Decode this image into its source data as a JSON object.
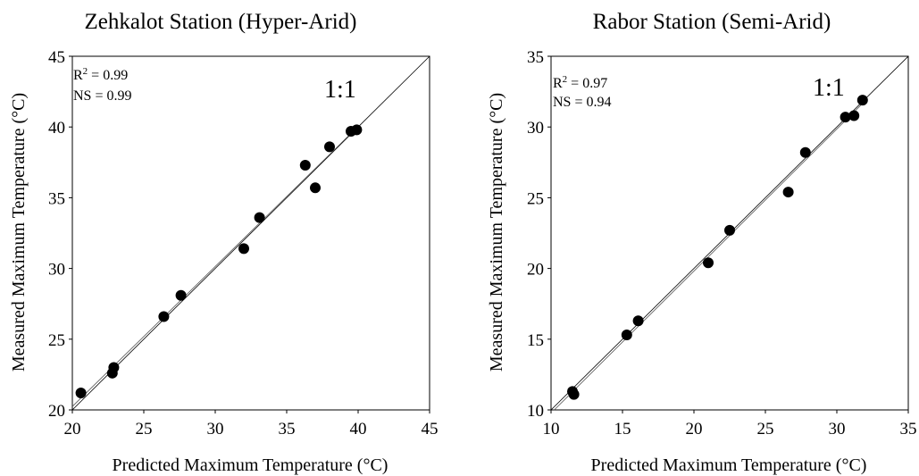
{
  "chart_data": [
    {
      "type": "scatter",
      "title": "Zehkalot Station (Hyper-Arid)",
      "xlabel": "Predicted Maximum Temperature (°C)",
      "ylabel": "Measured Maximum Temperature (°C)",
      "xlim": [
        20,
        45
      ],
      "ylim": [
        20,
        45
      ],
      "xticks": [
        "20",
        "25",
        "30",
        "35",
        "40",
        "45"
      ],
      "yticks": [
        "20",
        "25",
        "30",
        "35",
        "40",
        "45"
      ],
      "grid": false,
      "r2_label": "R",
      "r2_sup": "2",
      "r2_value": " = 0.99",
      "ns_text": "NS = 0.99",
      "one_to_one_label": "1:1",
      "x": [
        20.6,
        22.8,
        22.9,
        26.4,
        27.6,
        32.0,
        33.1,
        36.3,
        37.0,
        38.0,
        39.5,
        39.9
      ],
      "y": [
        21.2,
        22.6,
        23.0,
        26.6,
        28.1,
        31.4,
        33.6,
        37.3,
        35.7,
        38.6,
        39.7,
        39.8
      ]
    },
    {
      "type": "scatter",
      "title": "Rabor Station (Semi-Arid)",
      "xlabel": "Predicted Maximum Temperature (°C)",
      "ylabel": "Measured Maximum Temperature (°C)",
      "xlim": [
        10,
        35
      ],
      "ylim": [
        10,
        35
      ],
      "xticks": [
        "10",
        "15",
        "20",
        "25",
        "30",
        "35"
      ],
      "yticks": [
        "10",
        "15",
        "20",
        "25",
        "30",
        "35"
      ],
      "grid": false,
      "r2_label": "R",
      "r2_sup": "2",
      "r2_value": " = 0.97",
      "ns_text": "NS = 0.94",
      "one_to_one_label": "1:1",
      "x": [
        11.5,
        11.6,
        15.3,
        16.1,
        21.0,
        22.5,
        26.6,
        27.8,
        30.6,
        31.2,
        31.8
      ],
      "y": [
        11.3,
        11.1,
        15.3,
        16.3,
        20.4,
        22.7,
        25.4,
        28.2,
        30.7,
        30.8,
        31.9
      ]
    }
  ]
}
